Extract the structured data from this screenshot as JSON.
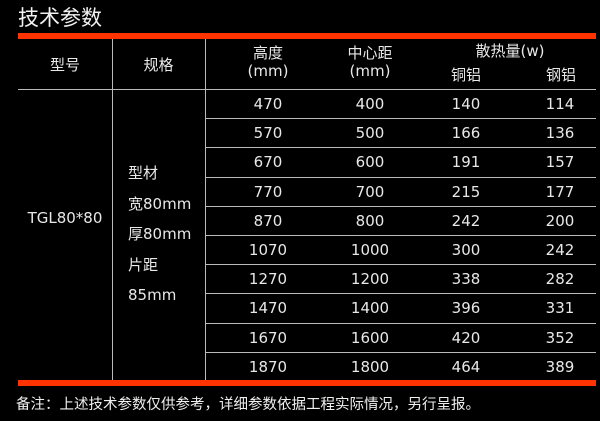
{
  "title": "技术参数",
  "accent_color": "#ff3300",
  "headers": {
    "model": "型号",
    "spec": "规格",
    "height": [
      "高度",
      "(mm)"
    ],
    "center_distance": [
      "中心距",
      "(mm)"
    ],
    "heat": "散热量(w)",
    "copper_aluminum": "铜铝",
    "steel_aluminum": "钢铝"
  },
  "model": "TGL80*80",
  "spec_lines": [
    "型材",
    "宽80mm",
    "厚80mm",
    "片距",
    "85mm"
  ],
  "rows": [
    [
      "470",
      "400",
      "140",
      "114"
    ],
    [
      "570",
      "500",
      "166",
      "136"
    ],
    [
      "670",
      "600",
      "191",
      "157"
    ],
    [
      "770",
      "700",
      "215",
      "177"
    ],
    [
      "870",
      "800",
      "242",
      "200"
    ],
    [
      "1070",
      "1000",
      "300",
      "242"
    ],
    [
      "1270",
      "1200",
      "338",
      "282"
    ],
    [
      "1470",
      "1400",
      "396",
      "331"
    ],
    [
      "1670",
      "1600",
      "420",
      "352"
    ],
    [
      "1870",
      "1800",
      "464",
      "389"
    ]
  ],
  "footnote": "备注：上述技术参数仅供参考，详细参数依据工程实际情况，另行呈报。"
}
